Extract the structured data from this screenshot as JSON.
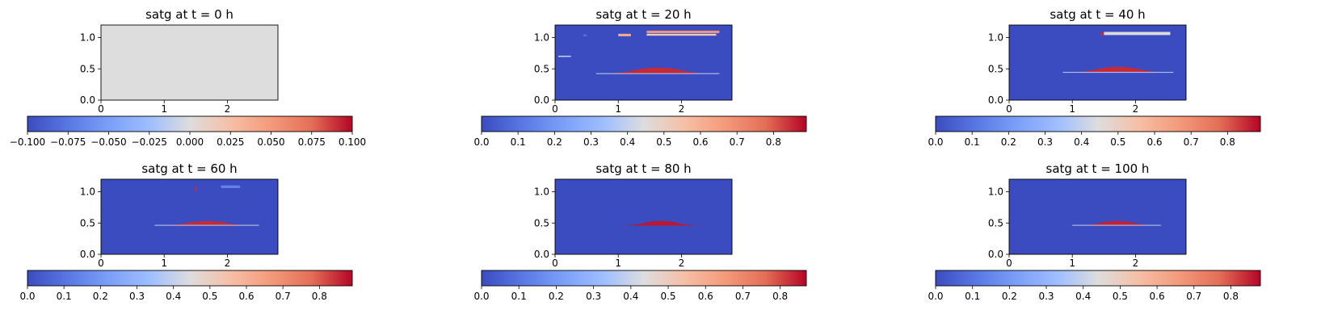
{
  "chart_data": {
    "type": "heatmap",
    "colormap": "coolwarm",
    "panels": [
      {
        "title": "satg at t = 0 h",
        "xticks": [
          "0",
          "1",
          "2"
        ],
        "yticks": [
          "0.0",
          "0.5",
          "1.0"
        ],
        "xlim": [
          0,
          2.8
        ],
        "ylim": [
          0,
          1.2
        ],
        "field_uniform": 0.0,
        "colorbar": {
          "vmin": -0.1,
          "vmax": 0.1,
          "ticks": [
            "−0.100",
            "−0.075",
            "−0.050",
            "−0.025",
            "0.000",
            "0.025",
            "0.050",
            "0.075",
            "0.100"
          ]
        },
        "features": []
      },
      {
        "title": "satg at t = 20 h",
        "xticks": [
          "0",
          "1",
          "2"
        ],
        "yticks": [
          "0.0",
          "0.5",
          "1.0"
        ],
        "xlim": [
          0,
          2.8
        ],
        "ylim": [
          0,
          1.2
        ],
        "field_uniform": 0.0,
        "colorbar": {
          "vmin": 0.0,
          "vmax": 0.89,
          "ticks": [
            "0.0",
            "0.1",
            "0.2",
            "0.3",
            "0.4",
            "0.5",
            "0.6",
            "0.7",
            "0.8"
          ]
        },
        "features": [
          {
            "shape": "mound",
            "x0": 0.65,
            "x1": 2.6,
            "y0": 0.42,
            "peak": 0.52,
            "value": 0.85
          },
          {
            "shape": "band",
            "x0": 0.65,
            "x1": 2.6,
            "y0": 0.42,
            "y1": 0.43,
            "value": 0.4
          },
          {
            "shape": "band",
            "x0": 1.45,
            "x1": 2.6,
            "y0": 1.07,
            "y1": 1.11,
            "value": 0.68
          },
          {
            "shape": "band",
            "x0": 1.45,
            "x1": 2.55,
            "y0": 1.03,
            "y1": 1.06,
            "value": 0.5
          },
          {
            "shape": "band",
            "x0": 1.0,
            "x1": 1.2,
            "y0": 1.02,
            "y1": 1.06,
            "value": 0.62
          },
          {
            "shape": "band",
            "x0": 0.05,
            "x1": 0.25,
            "y0": 0.69,
            "y1": 0.71,
            "value": 0.4
          },
          {
            "shape": "band",
            "x0": 0.45,
            "x1": 0.5,
            "y0": 1.02,
            "y1": 1.05,
            "value": 0.1
          }
        ]
      },
      {
        "title": "satg at t = 40 h",
        "xticks": [
          "0",
          "1",
          "2"
        ],
        "yticks": [
          "0.0",
          "0.5",
          "1.0"
        ],
        "xlim": [
          0,
          2.8
        ],
        "ylim": [
          0,
          1.2
        ],
        "field_uniform": 0.0,
        "colorbar": {
          "vmin": 0.0,
          "vmax": 0.89,
          "ticks": [
            "0.0",
            "0.1",
            "0.2",
            "0.3",
            "0.4",
            "0.5",
            "0.6",
            "0.7",
            "0.8"
          ]
        },
        "features": [
          {
            "shape": "mound",
            "x0": 0.85,
            "x1": 2.6,
            "y0": 0.44,
            "peak": 0.53,
            "value": 0.85
          },
          {
            "shape": "band",
            "x0": 0.85,
            "x1": 2.6,
            "y0": 0.44,
            "y1": 0.45,
            "value": 0.4
          },
          {
            "shape": "band",
            "x0": 1.5,
            "x1": 2.55,
            "y0": 1.04,
            "y1": 1.09,
            "value": 0.45
          },
          {
            "shape": "band",
            "x0": 1.45,
            "x1": 1.5,
            "y0": 1.03,
            "y1": 1.08,
            "value": 0.85
          }
        ]
      },
      {
        "title": "satg at t = 60 h",
        "xticks": [
          "0",
          "1",
          "2"
        ],
        "yticks": [
          "0.0",
          "0.5",
          "1.0"
        ],
        "xlim": [
          0,
          2.8
        ],
        "ylim": [
          0,
          1.2
        ],
        "field_uniform": 0.0,
        "colorbar": {
          "vmin": 0.0,
          "vmax": 0.89,
          "ticks": [
            "0.0",
            "0.1",
            "0.2",
            "0.3",
            "0.4",
            "0.5",
            "0.6",
            "0.7",
            "0.8"
          ]
        },
        "features": [
          {
            "shape": "mound",
            "x0": 0.85,
            "x1": 2.5,
            "y0": 0.46,
            "peak": 0.53,
            "value": 0.85
          },
          {
            "shape": "band",
            "x0": 0.85,
            "x1": 2.5,
            "y0": 0.46,
            "y1": 0.47,
            "value": 0.4
          },
          {
            "shape": "band",
            "x0": 1.9,
            "x1": 2.2,
            "y0": 1.06,
            "y1": 1.1,
            "value": 0.15
          },
          {
            "shape": "band",
            "x0": 1.48,
            "x1": 1.52,
            "y0": 1.02,
            "y1": 1.08,
            "value": 0.85
          }
        ]
      },
      {
        "title": "satg at t = 80 h",
        "xticks": [
          "0",
          "1",
          "2"
        ],
        "yticks": [
          "0.0",
          "0.5",
          "1.0"
        ],
        "xlim": [
          0,
          2.8
        ],
        "ylim": [
          0,
          1.2
        ],
        "field_uniform": 0.0,
        "colorbar": {
          "vmin": 0.0,
          "vmax": 0.87,
          "ticks": [
            "0.0",
            "0.1",
            "0.2",
            "0.3",
            "0.4",
            "0.5",
            "0.6",
            "0.7",
            "0.8"
          ]
        },
        "features": [
          {
            "shape": "mound",
            "x0": 1.0,
            "x1": 2.35,
            "y0": 0.46,
            "peak": 0.53,
            "value": 0.85
          }
        ]
      },
      {
        "title": "satg at t = 100 h",
        "xticks": [
          "0",
          "1",
          "2"
        ],
        "yticks": [
          "0.0",
          "0.5",
          "1.0"
        ],
        "xlim": [
          0,
          2.8
        ],
        "ylim": [
          0,
          1.2
        ],
        "field_uniform": 0.0,
        "colorbar": {
          "vmin": 0.0,
          "vmax": 0.88,
          "ticks": [
            "0.0",
            "0.1",
            "0.2",
            "0.3",
            "0.4",
            "0.5",
            "0.6",
            "0.7",
            "0.8"
          ]
        },
        "features": [
          {
            "shape": "mound",
            "x0": 1.0,
            "x1": 2.4,
            "y0": 0.46,
            "peak": 0.53,
            "value": 0.85
          },
          {
            "shape": "band",
            "x0": 1.0,
            "x1": 2.4,
            "y0": 0.46,
            "y1": 0.47,
            "value": 0.4
          }
        ]
      }
    ]
  }
}
